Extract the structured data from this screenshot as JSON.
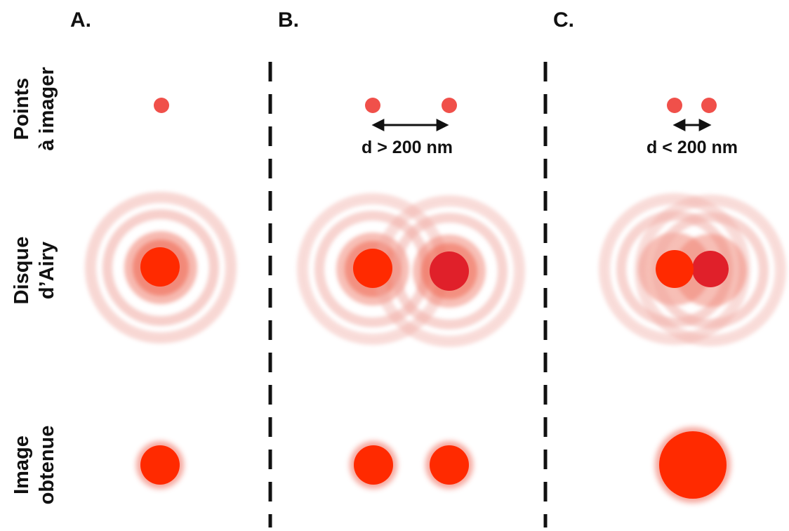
{
  "panels": [
    {
      "label": "A.",
      "distance_label": ""
    },
    {
      "label": "B.",
      "distance_label": "d > 200 nm"
    },
    {
      "label": "C.",
      "distance_label": "d < 200 nm"
    }
  ],
  "rows": [
    {
      "line1": "Points",
      "line2": "à imager"
    },
    {
      "line1": "Disque",
      "line2": "d’Airy"
    },
    {
      "line1": "Image",
      "line2": "obtenue"
    }
  ],
  "colors": {
    "point": "#f0504a",
    "spot_bright": "#ff2a00",
    "spot_dark": "#e0202a",
    "ring": "#f0a8a0",
    "divider": "#111111"
  }
}
